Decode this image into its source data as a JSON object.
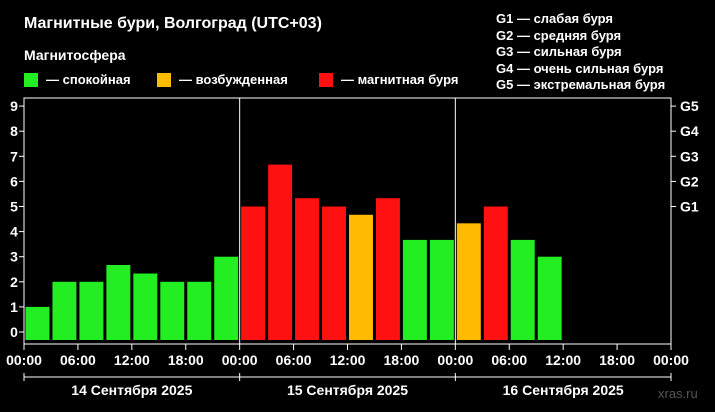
{
  "title": "Магнитные бури, Волгоград (UTC+03)",
  "subtitle": "Магнитосфера",
  "legend": [
    {
      "label": "— спокойная",
      "color": "#22ee22"
    },
    {
      "label": "— возбужденная",
      "color": "#ffbb00"
    },
    {
      "label": "— магнитная буря",
      "color": "#ff1111"
    }
  ],
  "g_scale": [
    "G1 — слабая буря",
    "G2 — средняя буря",
    "G3 — сильная буря",
    "G4 — очень сильная буря",
    "G5 — экстремальная буря"
  ],
  "watermark": "xras.ru",
  "chart_data": {
    "type": "bar",
    "title": "Магнитные бури, Волгоград (UTC+03)",
    "y_ticks": [
      "0",
      "1",
      "2",
      "3",
      "4",
      "5",
      "6",
      "7",
      "8",
      "9"
    ],
    "ylim": [
      0,
      9
    ],
    "right_ticks": [
      {
        "label": "G1",
        "value": 5
      },
      {
        "label": "G2",
        "value": 6
      },
      {
        "label": "G3",
        "value": 7
      },
      {
        "label": "G4",
        "value": 8
      },
      {
        "label": "G5",
        "value": 9
      }
    ],
    "x_ticks": [
      "00:00",
      "06:00",
      "12:00",
      "18:00",
      "00:00",
      "06:00",
      "12:00",
      "18:00",
      "00:00",
      "06:00",
      "12:00",
      "18:00",
      "00:00"
    ],
    "days": [
      "14 Сентября 2025",
      "15 Сентября 2025",
      "16 Сентября 2025"
    ],
    "interval_hours": 3,
    "values": [
      1.0,
      2.0,
      2.0,
      2.67,
      2.33,
      2.0,
      2.0,
      3.0,
      5.0,
      6.67,
      5.33,
      5.0,
      4.67,
      5.33,
      3.67,
      3.67,
      4.33,
      5.0,
      3.67,
      3.0
    ],
    "levels": [
      "quiet",
      "quiet",
      "quiet",
      "quiet",
      "quiet",
      "quiet",
      "quiet",
      "quiet",
      "storm",
      "storm",
      "storm",
      "storm",
      "active",
      "storm",
      "quiet",
      "quiet",
      "active",
      "storm",
      "quiet",
      "quiet"
    ],
    "level_colors": {
      "quiet": "#22ee22",
      "active": "#ffbb00",
      "storm": "#ff1111"
    }
  }
}
